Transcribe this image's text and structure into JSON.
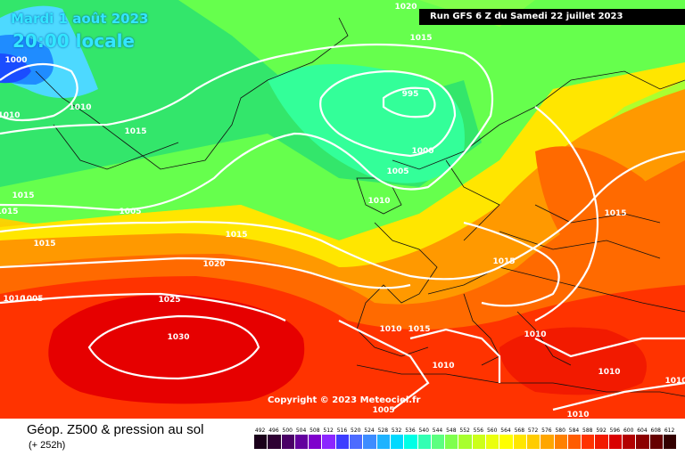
{
  "header": {
    "date": "Mardi 1 août 2023",
    "time": "20:00 locale",
    "run": "Run GFS 6 Z du Samedi 22 juillet 2023"
  },
  "copyright": "Copyright © 2023 Meteociel.fr",
  "footer": {
    "product": "Géop. Z500 & pression au sol",
    "lead": "(+ 252h)"
  },
  "isobar_labels": [
    "1020",
    "1015",
    "1000",
    "1010",
    "1010",
    "995",
    "1015",
    "1000",
    "1005",
    "1015",
    "1015",
    "1010",
    "1005",
    "1015",
    "1015",
    "1015",
    "1020",
    "1015",
    "1010",
    "1025",
    "1010",
    "1015",
    "1010",
    "1030",
    "1010",
    "1010",
    "1005",
    "1010",
    "1005",
    "1010"
  ],
  "legend": {
    "values": [
      "492",
      "496",
      "500",
      "504",
      "508",
      "512",
      "516",
      "520",
      "524",
      "528",
      "532",
      "536",
      "540",
      "544",
      "548",
      "552",
      "556",
      "560",
      "564",
      "568",
      "572",
      "576",
      "580",
      "584",
      "588",
      "592",
      "596",
      "600",
      "604",
      "608",
      "612"
    ],
    "colors": [
      "#1a001a",
      "#2e0033",
      "#4a0066",
      "#63009e",
      "#7f00cc",
      "#8c26ff",
      "#3d3dff",
      "#4d6bff",
      "#3d8cff",
      "#1fb3ff",
      "#00d9ff",
      "#00ffe6",
      "#33ffb3",
      "#5cff80",
      "#7fff4d",
      "#a8ff2e",
      "#ccff1a",
      "#ebff0d",
      "#ffff00",
      "#ffe600",
      "#ffcc00",
      "#ffa600",
      "#ff8000",
      "#ff5c00",
      "#ff3300",
      "#f21a00",
      "#d90000",
      "#b30000",
      "#8c0000",
      "#660000",
      "#330000"
    ]
  }
}
